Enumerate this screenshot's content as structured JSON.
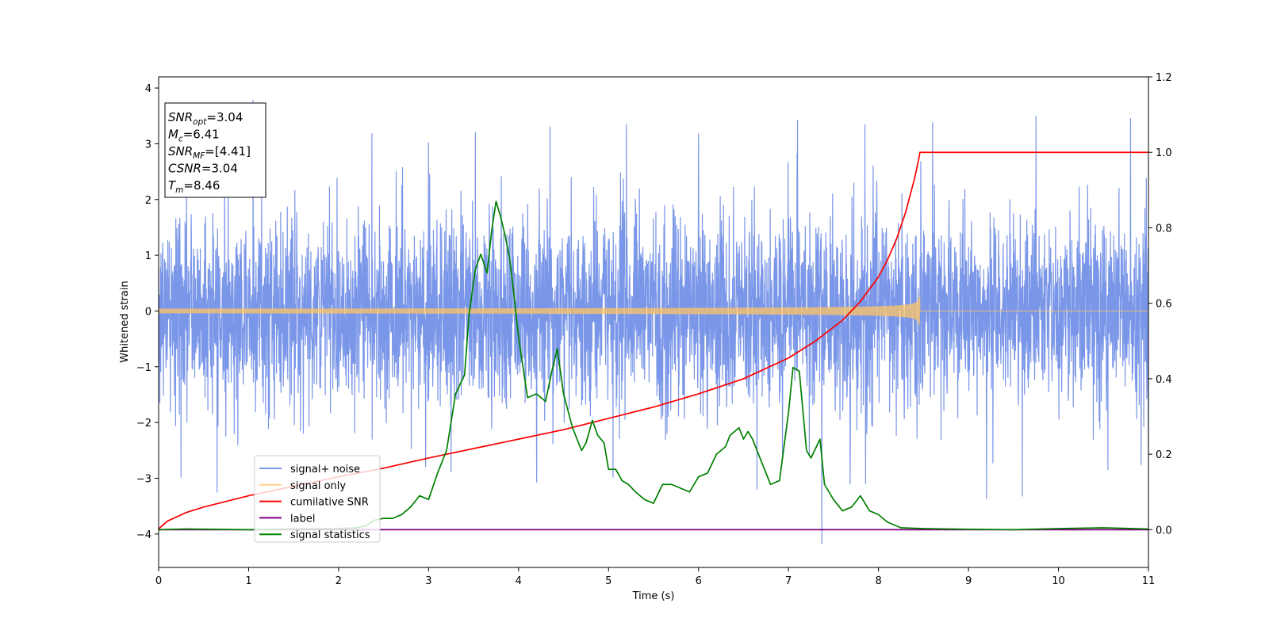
{
  "chart_data": {
    "type": "line",
    "title": "",
    "xlabel": "Time (s)",
    "ylabel": "Whitened strain",
    "xlim": [
      0,
      11
    ],
    "ylim": [
      -4.6,
      4.2
    ],
    "y2lim": [
      -0.1,
      1.2
    ],
    "x_ticks": [
      0,
      1,
      2,
      3,
      4,
      5,
      6,
      7,
      8,
      9,
      10,
      11
    ],
    "y_ticks": [
      -4,
      -3,
      -2,
      -1,
      0,
      1,
      2,
      3,
      4
    ],
    "y2_ticks": [
      0.0,
      0.2,
      0.4,
      0.6,
      0.8,
      1.0,
      1.2
    ],
    "grid": false,
    "legend_position": "lower-left",
    "annotation": {
      "lines": [
        {
          "base": "SNR",
          "sub": "opt",
          "value": "=3.04"
        },
        {
          "base": "M",
          "sub": "c",
          "value": "=6.41"
        },
        {
          "base": "SNR",
          "sub": "MF",
          "value": "=[4.41]"
        },
        {
          "base": "CSNR",
          "sub": "",
          "value": "=3.04"
        },
        {
          "base": "T",
          "sub": "m",
          "value": "=8.46"
        }
      ]
    },
    "series": [
      {
        "name": "signal+ noise",
        "color": "#7a96e8",
        "axis": "left",
        "kind": "noise",
        "sigma": 0.85,
        "peaks": [
          {
            "x": 1.05,
            "y": 3.78
          },
          {
            "x": 2.37,
            "y": 3.18
          },
          {
            "x": 3.0,
            "y": 3.02
          },
          {
            "x": 3.52,
            "y": 3.2
          },
          {
            "x": 4.35,
            "y": 3.3
          },
          {
            "x": 5.2,
            "y": 3.35
          },
          {
            "x": 6.0,
            "y": 3.18
          },
          {
            "x": 7.1,
            "y": 3.42
          },
          {
            "x": 7.85,
            "y": 3.34
          },
          {
            "x": 8.6,
            "y": 3.38
          },
          {
            "x": 9.75,
            "y": 3.5
          },
          {
            "x": 10.8,
            "y": 3.45
          },
          {
            "x": 7.37,
            "y": -4.17
          },
          {
            "x": 0.65,
            "y": -3.25
          },
          {
            "x": 4.2,
            "y": -3.07
          },
          {
            "x": 9.2,
            "y": -3.37
          },
          {
            "x": 9.6,
            "y": -3.32
          },
          {
            "x": 10.55,
            "y": -2.85
          },
          {
            "x": 3.25,
            "y": -2.88
          },
          {
            "x": 0.25,
            "y": -2.98
          },
          {
            "x": 5.05,
            "y": -2.98
          },
          {
            "x": 6.65,
            "y": -3.2
          }
        ]
      },
      {
        "name": "signal only",
        "color": "#ffc466",
        "axis": "left",
        "kind": "chirp",
        "t_merge": 8.46,
        "amp_peak": 0.28
      },
      {
        "name": "cumilative SNR",
        "color": "#ff0000",
        "axis": "right",
        "kind": "curve",
        "x": [
          0,
          0.1,
          0.3,
          0.5,
          1.0,
          1.5,
          2.0,
          2.5,
          3.0,
          3.5,
          4.0,
          4.5,
          5.0,
          5.5,
          6.0,
          6.5,
          7.0,
          7.3,
          7.6,
          7.8,
          8.0,
          8.1,
          8.2,
          8.3,
          8.4,
          8.45,
          8.46,
          11.0
        ],
        "values": [
          0.002,
          0.023,
          0.045,
          0.06,
          0.09,
          0.115,
          0.14,
          0.163,
          0.19,
          0.215,
          0.24,
          0.265,
          0.295,
          0.325,
          0.36,
          0.4,
          0.455,
          0.5,
          0.555,
          0.605,
          0.67,
          0.715,
          0.77,
          0.84,
          0.93,
          0.985,
          1.0,
          1.0
        ]
      },
      {
        "name": "label",
        "color": "#800080",
        "axis": "right",
        "kind": "curve",
        "x": [
          0,
          11
        ],
        "values": [
          0,
          0
        ]
      },
      {
        "name": "signal statistics",
        "color": "#008000",
        "axis": "right",
        "kind": "curve",
        "x": [
          0,
          0.3,
          0.6,
          1.0,
          1.5,
          2.0,
          2.2,
          2.3,
          2.4,
          2.5,
          2.6,
          2.7,
          2.8,
          2.9,
          3.0,
          3.1,
          3.2,
          3.3,
          3.4,
          3.45,
          3.52,
          3.58,
          3.65,
          3.7,
          3.75,
          3.8,
          3.85,
          3.9,
          3.95,
          4.0,
          4.05,
          4.1,
          4.2,
          4.3,
          4.37,
          4.43,
          4.5,
          4.6,
          4.7,
          4.75,
          4.82,
          4.88,
          4.95,
          5.0,
          5.08,
          5.15,
          5.22,
          5.3,
          5.4,
          5.5,
          5.6,
          5.7,
          5.8,
          5.9,
          6.0,
          6.1,
          6.2,
          6.3,
          6.35,
          6.45,
          6.5,
          6.55,
          6.6,
          6.7,
          6.8,
          6.9,
          7.0,
          7.05,
          7.12,
          7.2,
          7.25,
          7.35,
          7.4,
          7.5,
          7.6,
          7.7,
          7.8,
          7.9,
          8.0,
          8.1,
          8.25,
          8.5,
          9.0,
          9.5,
          10.0,
          10.5,
          11.0
        ],
        "values": [
          0.0,
          0.002,
          0.001,
          0.0,
          0.002,
          0.003,
          0.005,
          0.01,
          0.025,
          0.03,
          0.03,
          0.04,
          0.06,
          0.09,
          0.08,
          0.15,
          0.21,
          0.36,
          0.41,
          0.57,
          0.69,
          0.73,
          0.68,
          0.79,
          0.87,
          0.83,
          0.78,
          0.72,
          0.62,
          0.51,
          0.43,
          0.35,
          0.36,
          0.34,
          0.42,
          0.48,
          0.36,
          0.27,
          0.21,
          0.23,
          0.29,
          0.25,
          0.23,
          0.16,
          0.16,
          0.13,
          0.12,
          0.1,
          0.08,
          0.07,
          0.12,
          0.12,
          0.11,
          0.1,
          0.14,
          0.15,
          0.2,
          0.22,
          0.25,
          0.27,
          0.24,
          0.26,
          0.24,
          0.18,
          0.12,
          0.13,
          0.31,
          0.43,
          0.42,
          0.21,
          0.19,
          0.24,
          0.12,
          0.08,
          0.05,
          0.06,
          0.09,
          0.05,
          0.04,
          0.02,
          0.005,
          0.003,
          0.001,
          0.0,
          0.003,
          0.005,
          0.002
        ]
      }
    ]
  }
}
